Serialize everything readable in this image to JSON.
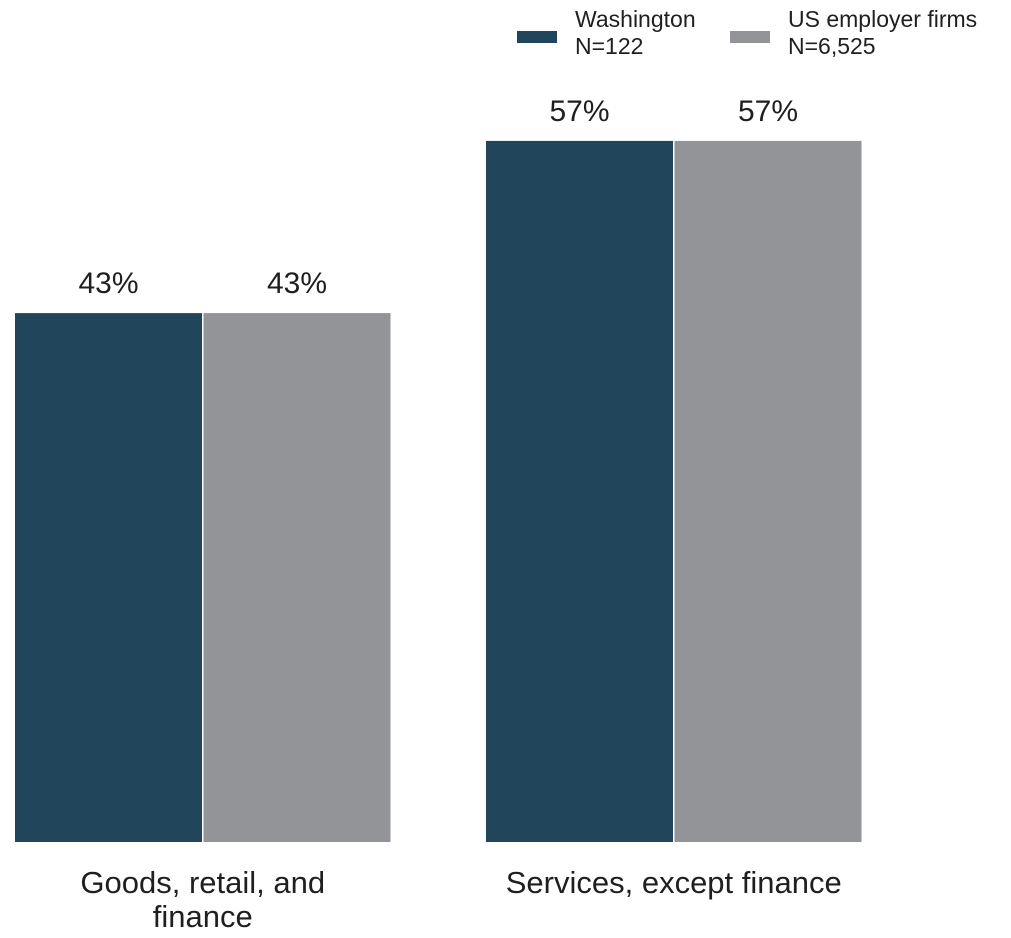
{
  "colors": {
    "washington": "#21465c",
    "us_employer_firms": "#939497",
    "text": "#1f1f1f",
    "background": "#ffffff"
  },
  "chart_data": {
    "type": "bar",
    "title": "",
    "xlabel": "",
    "ylabel": "",
    "ylim": [
      0,
      60
    ],
    "grid": false,
    "legend_position": "top-right",
    "categories": [
      [
        "Goods, retail, and",
        "finance"
      ],
      [
        "Services, except finance"
      ]
    ],
    "series": [
      {
        "name": "Washington",
        "legend_lines": [
          "Washington",
          "N=122"
        ],
        "color": "#21465c",
        "values": [
          43,
          57
        ],
        "labels": [
          "43%",
          "57%"
        ]
      },
      {
        "name": "US employer firms",
        "legend_lines": [
          "US employer firms",
          "N=6,525"
        ],
        "color": "#939497",
        "values": [
          43,
          57
        ],
        "labels": [
          "43%",
          "57%"
        ]
      }
    ]
  }
}
